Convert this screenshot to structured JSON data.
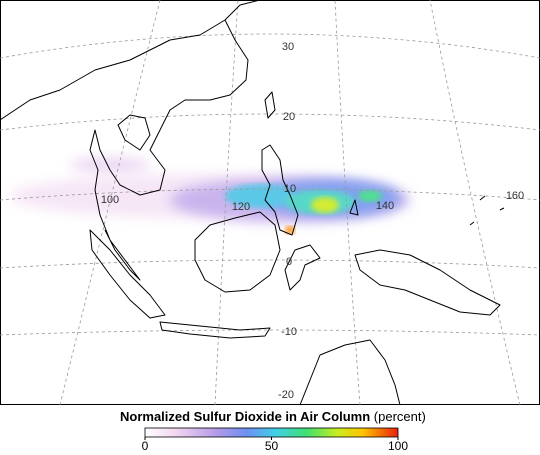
{
  "map": {
    "latitude_labels": [
      "30",
      "20",
      "10",
      "0",
      "-10",
      "-20"
    ],
    "longitude_labels": [
      "100",
      "120",
      "140",
      "160"
    ]
  },
  "legend": {
    "title": "Normalized Sulfur Dioxide in Air Column",
    "unit": "(percent)",
    "range": [
      0,
      100
    ],
    "ticks": [
      0,
      50,
      100
    ]
  }
}
